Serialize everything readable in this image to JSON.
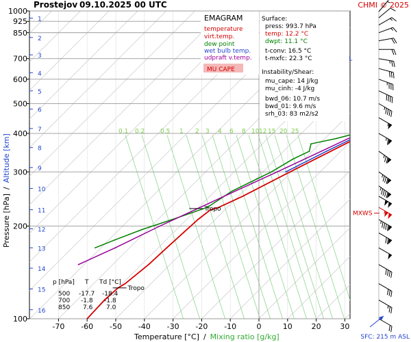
{
  "header": {
    "station": "Prostejov",
    "datetime": "09.10.2025 00 UTC",
    "credit": "CHMI © 2025"
  },
  "legend": {
    "title": "EMAGRAM",
    "items": [
      {
        "label": "temperature",
        "color": "#d40000"
      },
      {
        "label": "virt.temp.",
        "color": "#d40000"
      },
      {
        "label": "dew point",
        "color": "#008000"
      },
      {
        "label": "wet bulb temp.",
        "color": "#2244cc"
      },
      {
        "label": "udpraft v.temp.",
        "color": "#990099"
      }
    ],
    "badge": "MU CAPE",
    "badge_bg": "#f4b8b8",
    "badge_color": "#d40000"
  },
  "info": {
    "surface_title": "Surface:",
    "surface": [
      {
        "text": "press: 993.7 hPa",
        "color": "#000000"
      },
      {
        "text": "temp: 12.2 °C",
        "color": "#d40000"
      },
      {
        "text": "dwpt: 11.1 °C",
        "color": "#008000"
      }
    ],
    "tconv": [
      "t-conv: 16.5 °C",
      "t-mxfc: 22.3 °C"
    ],
    "instability_title": "Instability/Shear:",
    "instability": [
      "mu_cape: 14 J/kg",
      "mu_cinh: -4 J/kg"
    ],
    "shear": [
      "bwd_06: 10.7 m/s",
      "bwd_01: 9.6 m/s",
      "srh_03: 83 m2/s2"
    ]
  },
  "table": {
    "headers": [
      "p [hPa]",
      "T",
      "Td [°C]"
    ],
    "rows": [
      [
        "500",
        "-17.7",
        "-18.4"
      ],
      [
        "700",
        "-1.8",
        "-1.8"
      ],
      [
        "850",
        "7.6",
        "7.0"
      ]
    ]
  },
  "labels": {
    "tropo": "Tropo",
    "mxws": "MXWS",
    "wbzl": "WBZL",
    "sfc": "SFC: 215 m ASL"
  },
  "chart_data": {
    "type": "line",
    "xlabel": "Temperature [°C]",
    "xlabel_sep": "/",
    "xlabel2": "Mixing ratio [g/kg]",
    "ylabel": "Pressure [hPa]",
    "ylabel_sep": "/",
    "ylabel2": "Altitude [km]",
    "x_ticks": [
      -70,
      -60,
      -50,
      -40,
      -30,
      -20,
      -10,
      0,
      10,
      20,
      30
    ],
    "p_ticks": [
      100,
      200,
      300,
      400,
      500,
      600,
      700,
      850,
      925,
      1000
    ],
    "altitude_km": [
      {
        "km": 1,
        "p": 948
      },
      {
        "km": 2,
        "p": 820
      },
      {
        "km": 3,
        "p": 720
      },
      {
        "km": 4,
        "p": 630
      },
      {
        "km": 5,
        "p": 550
      },
      {
        "km": 6,
        "p": 480
      },
      {
        "km": 7,
        "p": 415
      },
      {
        "km": 8,
        "p": 360
      },
      {
        "km": 9,
        "p": 310
      },
      {
        "km": 10,
        "p": 265
      },
      {
        "km": 11,
        "p": 226
      },
      {
        "km": 12,
        "p": 196
      },
      {
        "km": 13,
        "p": 170
      },
      {
        "km": 14,
        "p": 146
      },
      {
        "km": 15,
        "p": 125
      },
      {
        "km": 16,
        "p": 107
      }
    ],
    "mixing_ratio_labels": [
      "0.1",
      "0.2",
      "0.5",
      "1",
      "2",
      "3",
      "4",
      "6",
      "8",
      "10",
      "12",
      "15",
      "20",
      "25"
    ],
    "tropopause": [
      {
        "p": 126,
        "t": -59
      },
      {
        "p": 228,
        "t": -60
      }
    ],
    "wbzl_p": 711,
    "mxws_p": 226,
    "series": [
      {
        "name": "temperature",
        "color": "#d40000",
        "points": [
          {
            "p": 993,
            "t": 12.2
          },
          {
            "p": 975,
            "t": 11.5
          },
          {
            "p": 950,
            "t": 10.0
          },
          {
            "p": 925,
            "t": 9.0
          },
          {
            "p": 900,
            "t": 8.2
          },
          {
            "p": 850,
            "t": 7.6
          },
          {
            "p": 800,
            "t": 4.5
          },
          {
            "p": 750,
            "t": 1.5
          },
          {
            "p": 700,
            "t": -1.8
          },
          {
            "p": 650,
            "t": -5.5
          },
          {
            "p": 600,
            "t": -9.5
          },
          {
            "p": 550,
            "t": -13.5
          },
          {
            "p": 500,
            "t": -17.7
          },
          {
            "p": 450,
            "t": -22.0
          },
          {
            "p": 400,
            "t": -27.5
          },
          {
            "p": 350,
            "t": -33.5
          },
          {
            "p": 300,
            "t": -40.5
          },
          {
            "p": 250,
            "t": -48.5
          },
          {
            "p": 230,
            "t": -53.0
          },
          {
            "p": 226,
            "t": -55.0
          },
          {
            "p": 210,
            "t": -56.0
          },
          {
            "p": 190,
            "t": -56.5
          },
          {
            "p": 170,
            "t": -57.0
          },
          {
            "p": 150,
            "t": -57.5
          },
          {
            "p": 130,
            "t": -59.0
          },
          {
            "p": 126,
            "t": -60.0
          },
          {
            "p": 115,
            "t": -60.5
          },
          {
            "p": 100,
            "t": -60.0
          }
        ]
      },
      {
        "name": "dew point",
        "color": "#008000",
        "points": [
          {
            "p": 993,
            "t": 11.1
          },
          {
            "p": 975,
            "t": 10.5
          },
          {
            "p": 950,
            "t": 9.0
          },
          {
            "p": 925,
            "t": 8.2
          },
          {
            "p": 900,
            "t": 7.5
          },
          {
            "p": 850,
            "t": 7.0
          },
          {
            "p": 800,
            "t": 3.0
          },
          {
            "p": 750,
            "t": 0.0
          },
          {
            "p": 700,
            "t": -1.8
          },
          {
            "p": 650,
            "t": -6.0
          },
          {
            "p": 620,
            "t": -12.0
          },
          {
            "p": 600,
            "t": -13.0
          },
          {
            "p": 575,
            "t": -11.0
          },
          {
            "p": 550,
            "t": -14.0
          },
          {
            "p": 500,
            "t": -18.4
          },
          {
            "p": 450,
            "t": -24.0
          },
          {
            "p": 420,
            "t": -28.0
          },
          {
            "p": 400,
            "t": -31.0
          },
          {
            "p": 385,
            "t": -36.0
          },
          {
            "p": 370,
            "t": -43.0
          },
          {
            "p": 350,
            "t": -41.0
          },
          {
            "p": 330,
            "t": -44.0
          },
          {
            "p": 300,
            "t": -47.0
          },
          {
            "p": 260,
            "t": -54.0
          },
          {
            "p": 230,
            "t": -57.0
          },
          {
            "p": 210,
            "t": -65.0
          },
          {
            "p": 195,
            "t": -72.0
          },
          {
            "p": 180,
            "t": -78.0
          },
          {
            "p": 170,
            "t": -82.0
          }
        ]
      },
      {
        "name": "wet bulb temp.",
        "color": "#2244cc",
        "points": [
          {
            "p": 993,
            "t": 11.6
          },
          {
            "p": 950,
            "t": 9.4
          },
          {
            "p": 900,
            "t": 7.8
          },
          {
            "p": 850,
            "t": 7.2
          },
          {
            "p": 800,
            "t": 3.6
          },
          {
            "p": 750,
            "t": 0.6
          },
          {
            "p": 700,
            "t": -1.8
          },
          {
            "p": 650,
            "t": -5.8
          },
          {
            "p": 600,
            "t": -10.8
          },
          {
            "p": 550,
            "t": -13.8
          },
          {
            "p": 500,
            "t": -18.0
          },
          {
            "p": 450,
            "t": -22.8
          },
          {
            "p": 400,
            "t": -28.5
          },
          {
            "p": 350,
            "t": -35.0
          },
          {
            "p": 300,
            "t": -42.0
          }
        ]
      },
      {
        "name": "udpraft v.temp.",
        "color": "#990099",
        "points": [
          {
            "p": 993,
            "t": 12.5
          },
          {
            "p": 950,
            "t": 10.2
          },
          {
            "p": 900,
            "t": 8.3
          },
          {
            "p": 850,
            "t": 6.5
          },
          {
            "p": 800,
            "t": 3.6
          },
          {
            "p": 750,
            "t": 0.5
          },
          {
            "p": 700,
            "t": -2.6
          },
          {
            "p": 650,
            "t": -6.0
          },
          {
            "p": 600,
            "t": -9.8
          },
          {
            "p": 550,
            "t": -14.0
          },
          {
            "p": 500,
            "t": -18.6
          },
          {
            "p": 450,
            "t": -23.8
          },
          {
            "p": 400,
            "t": -29.8
          },
          {
            "p": 350,
            "t": -36.8
          },
          {
            "p": 300,
            "t": -45.0
          },
          {
            "p": 250,
            "t": -55.0
          },
          {
            "p": 200,
            "t": -67.0
          },
          {
            "p": 170,
            "t": -75.0
          },
          {
            "p": 150,
            "t": -82.0
          }
        ]
      }
    ],
    "wind_profile": [
      {
        "p": 995,
        "dir": 220,
        "kt": 5
      },
      {
        "p": 950,
        "dir": 230,
        "kt": 10
      },
      {
        "p": 900,
        "dir": 240,
        "kt": 15
      },
      {
        "p": 850,
        "dir": 250,
        "kt": 15
      },
      {
        "p": 800,
        "dir": 260,
        "kt": 20
      },
      {
        "p": 750,
        "dir": 270,
        "kt": 20
      },
      {
        "p": 700,
        "dir": 280,
        "kt": 25
      },
      {
        "p": 650,
        "dir": 285,
        "kt": 30
      },
      {
        "p": 600,
        "dir": 290,
        "kt": 35
      },
      {
        "p": 550,
        "dir": 295,
        "kt": 40
      },
      {
        "p": 500,
        "dir": 300,
        "kt": 45
      },
      {
        "p": 450,
        "dir": 300,
        "kt": 55
      },
      {
        "p": 400,
        "dir": 300,
        "kt": 65
      },
      {
        "p": 350,
        "dir": 305,
        "kt": 75
      },
      {
        "p": 300,
        "dir": 305,
        "kt": 85
      },
      {
        "p": 270,
        "dir": 305,
        "kt": 95
      },
      {
        "p": 250,
        "dir": 300,
        "kt": 100
      },
      {
        "p": 230,
        "dir": 300,
        "kt": 105
      },
      {
        "p": 210,
        "dir": 300,
        "kt": 95
      },
      {
        "p": 190,
        "dir": 300,
        "kt": 70
      },
      {
        "p": 170,
        "dir": 300,
        "kt": 50
      },
      {
        "p": 150,
        "dir": 300,
        "kt": 40
      },
      {
        "p": 130,
        "dir": 300,
        "kt": 30
      },
      {
        "p": 115,
        "dir": 300,
        "kt": 25
      },
      {
        "p": 100,
        "dir": 300,
        "kt": 20
      }
    ]
  }
}
